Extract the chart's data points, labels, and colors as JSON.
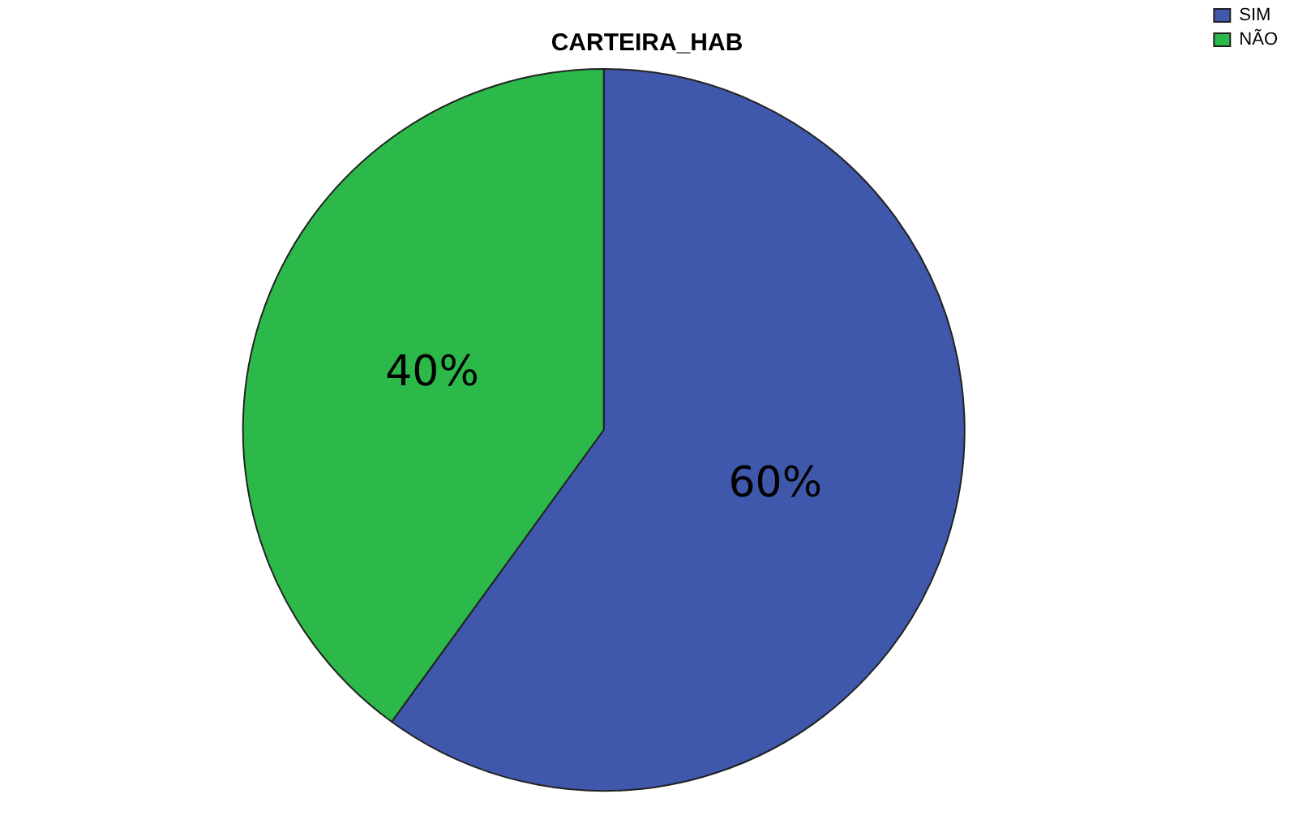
{
  "chart_data": {
    "type": "pie",
    "title": "CARTEIRA_HAB",
    "categories": [
      "SIM",
      "NÃO"
    ],
    "values": [
      60,
      40
    ],
    "colors": [
      "#3f58ab",
      "#2db84a"
    ],
    "value_labels": [
      "60%",
      "40%"
    ],
    "legend": "top right"
  }
}
